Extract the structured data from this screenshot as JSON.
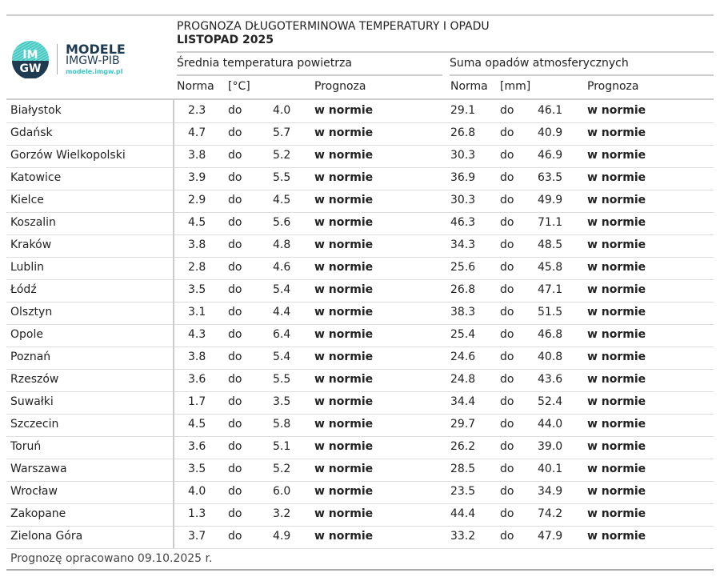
{
  "logo": {
    "mark": "IMGW",
    "title": "MODELE",
    "subtitle": "IMGW-PIB",
    "url": "modele.imgw.pl",
    "accent": "#3cc7c0",
    "dark": "#1f3b52"
  },
  "header": {
    "title": "PROGNOZA DŁUGOTERMINOWA TEMPERATURY I OPADU",
    "period": "LISTOPAD 2025"
  },
  "temp": {
    "title": "Średnia temperatura powietrza",
    "col_norma": "Norma",
    "col_unit": "[°C]",
    "col_prognoza": "Prognoza"
  },
  "precip": {
    "title": "Suma opadów atmosferycznych",
    "col_norma": "Norma",
    "col_unit": "[mm]",
    "col_prognoza": "Prognoza"
  },
  "rows": [
    {
      "city": "Białystok",
      "t_min": "2.3",
      "t_sep": "do",
      "t_max": "4.0",
      "t_fc": "w normie",
      "p_min": "29.1",
      "p_sep": "do",
      "p_max": "46.1",
      "p_fc": "w normie"
    },
    {
      "city": "Gdańsk",
      "t_min": "4.7",
      "t_sep": "do",
      "t_max": "5.7",
      "t_fc": "w normie",
      "p_min": "26.8",
      "p_sep": "do",
      "p_max": "40.9",
      "p_fc": "w normie"
    },
    {
      "city": "Gorzów Wielkopolski",
      "t_min": "3.8",
      "t_sep": "do",
      "t_max": "5.2",
      "t_fc": "w normie",
      "p_min": "30.3",
      "p_sep": "do",
      "p_max": "46.9",
      "p_fc": "w normie"
    },
    {
      "city": "Katowice",
      "t_min": "3.9",
      "t_sep": "do",
      "t_max": "5.5",
      "t_fc": "w normie",
      "p_min": "36.9",
      "p_sep": "do",
      "p_max": "63.5",
      "p_fc": "w normie"
    },
    {
      "city": "Kielce",
      "t_min": "2.9",
      "t_sep": "do",
      "t_max": "4.5",
      "t_fc": "w normie",
      "p_min": "30.3",
      "p_sep": "do",
      "p_max": "49.9",
      "p_fc": "w normie"
    },
    {
      "city": "Koszalin",
      "t_min": "4.5",
      "t_sep": "do",
      "t_max": "5.6",
      "t_fc": "w normie",
      "p_min": "46.3",
      "p_sep": "do",
      "p_max": "71.1",
      "p_fc": "w normie"
    },
    {
      "city": "Kraków",
      "t_min": "3.8",
      "t_sep": "do",
      "t_max": "4.8",
      "t_fc": "w normie",
      "p_min": "34.3",
      "p_sep": "do",
      "p_max": "48.5",
      "p_fc": "w normie"
    },
    {
      "city": "Lublin",
      "t_min": "2.8",
      "t_sep": "do",
      "t_max": "4.6",
      "t_fc": "w normie",
      "p_min": "25.6",
      "p_sep": "do",
      "p_max": "45.8",
      "p_fc": "w normie"
    },
    {
      "city": "Łódź",
      "t_min": "3.5",
      "t_sep": "do",
      "t_max": "5.4",
      "t_fc": "w normie",
      "p_min": "26.8",
      "p_sep": "do",
      "p_max": "47.1",
      "p_fc": "w normie"
    },
    {
      "city": "Olsztyn",
      "t_min": "3.1",
      "t_sep": "do",
      "t_max": "4.4",
      "t_fc": "w normie",
      "p_min": "38.3",
      "p_sep": "do",
      "p_max": "51.5",
      "p_fc": "w normie"
    },
    {
      "city": "Opole",
      "t_min": "4.3",
      "t_sep": "do",
      "t_max": "6.4",
      "t_fc": "w normie",
      "p_min": "25.4",
      "p_sep": "do",
      "p_max": "46.8",
      "p_fc": "w normie"
    },
    {
      "city": "Poznań",
      "t_min": "3.8",
      "t_sep": "do",
      "t_max": "5.4",
      "t_fc": "w normie",
      "p_min": "24.6",
      "p_sep": "do",
      "p_max": "40.8",
      "p_fc": "w normie"
    },
    {
      "city": "Rzeszów",
      "t_min": "3.6",
      "t_sep": "do",
      "t_max": "5.5",
      "t_fc": "w normie",
      "p_min": "24.8",
      "p_sep": "do",
      "p_max": "43.6",
      "p_fc": "w normie"
    },
    {
      "city": "Suwałki",
      "t_min": "1.7",
      "t_sep": "do",
      "t_max": "3.5",
      "t_fc": "w normie",
      "p_min": "34.4",
      "p_sep": "do",
      "p_max": "52.4",
      "p_fc": "w normie"
    },
    {
      "city": "Szczecin",
      "t_min": "4.5",
      "t_sep": "do",
      "t_max": "5.8",
      "t_fc": "w normie",
      "p_min": "29.7",
      "p_sep": "do",
      "p_max": "44.0",
      "p_fc": "w normie"
    },
    {
      "city": "Toruń",
      "t_min": "3.6",
      "t_sep": "do",
      "t_max": "5.1",
      "t_fc": "w normie",
      "p_min": "26.2",
      "p_sep": "do",
      "p_max": "39.0",
      "p_fc": "w normie"
    },
    {
      "city": "Warszawa",
      "t_min": "3.5",
      "t_sep": "do",
      "t_max": "5.2",
      "t_fc": "w normie",
      "p_min": "28.5",
      "p_sep": "do",
      "p_max": "40.1",
      "p_fc": "w normie"
    },
    {
      "city": "Wrocław",
      "t_min": "4.0",
      "t_sep": "do",
      "t_max": "6.0",
      "t_fc": "w normie",
      "p_min": "23.5",
      "p_sep": "do",
      "p_max": "34.9",
      "p_fc": "w normie"
    },
    {
      "city": "Zakopane",
      "t_min": "1.3",
      "t_sep": "do",
      "t_max": "3.2",
      "t_fc": "w normie",
      "p_min": "44.4",
      "p_sep": "do",
      "p_max": "74.2",
      "p_fc": "w normie"
    },
    {
      "city": "Zielona Góra",
      "t_min": "3.7",
      "t_sep": "do",
      "t_max": "4.9",
      "t_fc": "w normie",
      "p_min": "33.2",
      "p_sep": "do",
      "p_max": "47.9",
      "p_fc": "w normie"
    }
  ],
  "footer": {
    "note": "Prognozę opracowano 09.10.2025 r."
  }
}
